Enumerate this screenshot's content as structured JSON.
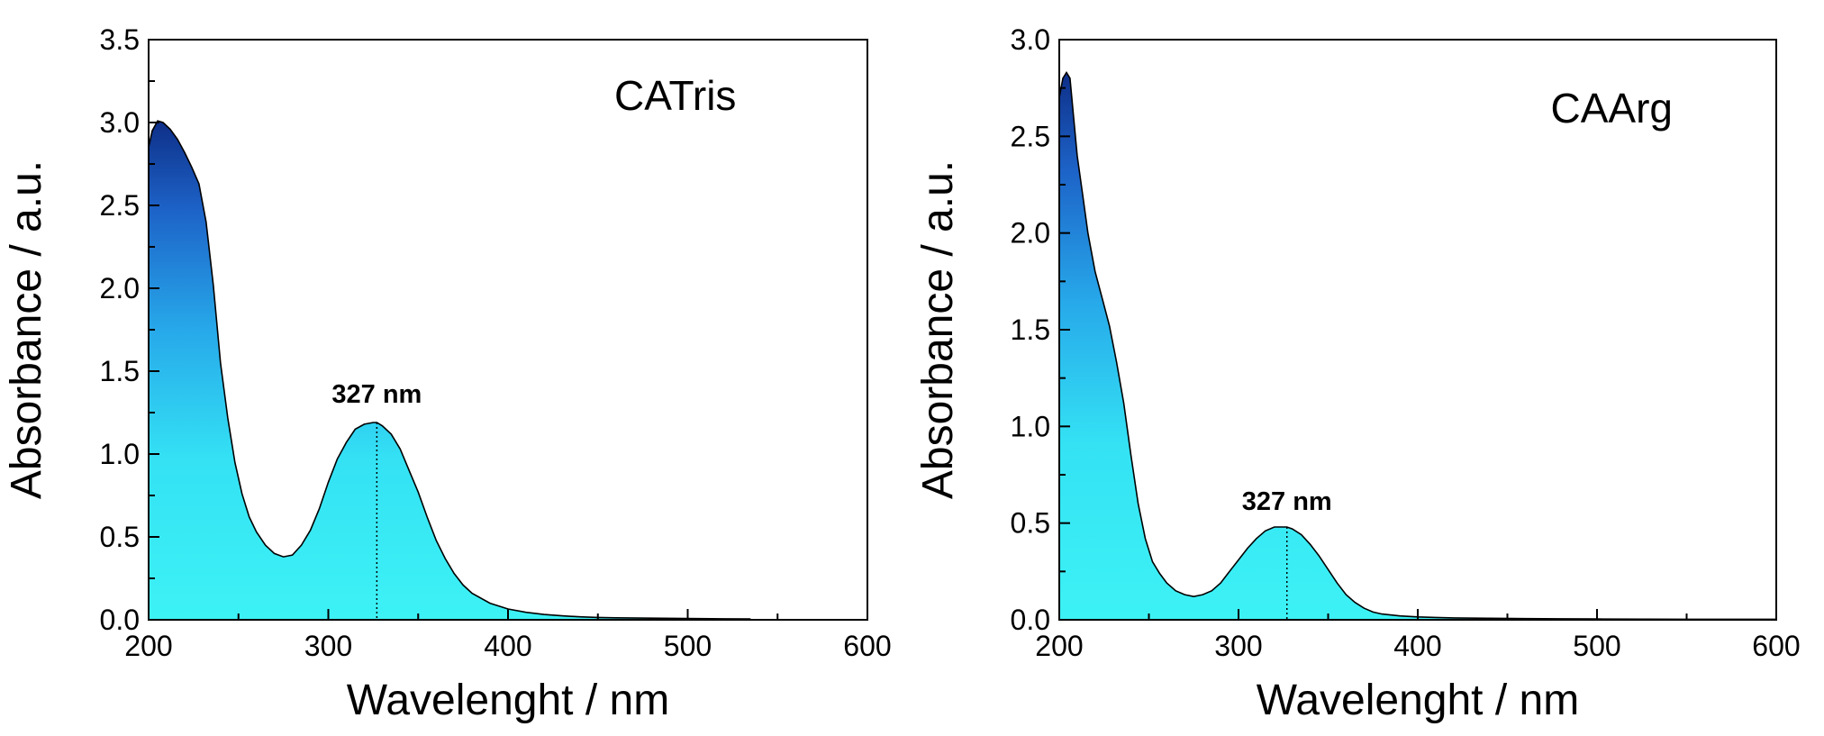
{
  "chart_data": [
    {
      "type": "area",
      "title": "CATris",
      "xlabel": "Wavelenght / nm",
      "ylabel": "Absorbance / a.u.",
      "xlim": [
        200,
        600
      ],
      "ylim": [
        0,
        3.5
      ],
      "xticks": [
        200,
        300,
        400,
        500,
        600
      ],
      "yticks": [
        0.0,
        0.5,
        1.0,
        1.5,
        2.0,
        2.5,
        3.0,
        3.5
      ],
      "xtick_labels": [
        "200",
        "300",
        "400",
        "500",
        "600"
      ],
      "ytick_labels": [
        "0.0",
        "0.5",
        "1.0",
        "1.5",
        "2.0",
        "2.5",
        "3.0",
        "3.5"
      ],
      "annotation": {
        "text": "327 nm",
        "x": 327,
        "y": 1.19
      },
      "series": [
        {
          "name": "CATris",
          "x": [
            200,
            202,
            205,
            208,
            212,
            216,
            220,
            224,
            228,
            232,
            236,
            240,
            244,
            248,
            252,
            256,
            260,
            265,
            270,
            275,
            280,
            285,
            290,
            295,
            300,
            305,
            310,
            315,
            320,
            325,
            327,
            330,
            335,
            340,
            345,
            350,
            355,
            360,
            365,
            370,
            375,
            380,
            390,
            400,
            410,
            420,
            430,
            440,
            450,
            460,
            480,
            500,
            520,
            535
          ],
          "y": [
            2.85,
            2.95,
            3.01,
            3.0,
            2.96,
            2.9,
            2.82,
            2.73,
            2.63,
            2.4,
            2.02,
            1.55,
            1.22,
            0.95,
            0.76,
            0.62,
            0.53,
            0.45,
            0.4,
            0.38,
            0.39,
            0.45,
            0.54,
            0.67,
            0.83,
            0.97,
            1.07,
            1.15,
            1.18,
            1.19,
            1.19,
            1.17,
            1.12,
            1.03,
            0.9,
            0.77,
            0.62,
            0.48,
            0.37,
            0.28,
            0.21,
            0.16,
            0.1,
            0.065,
            0.045,
            0.032,
            0.024,
            0.018,
            0.014,
            0.012,
            0.01,
            0.008,
            0.006,
            0.005
          ]
        }
      ]
    },
    {
      "type": "area",
      "title": "CAArg",
      "xlabel": "Wavelenght / nm",
      "ylabel": "Absorbance / a.u.",
      "xlim": [
        200,
        600
      ],
      "ylim": [
        0,
        3.0
      ],
      "xticks": [
        200,
        300,
        400,
        500,
        600
      ],
      "yticks": [
        0.0,
        0.5,
        1.0,
        1.5,
        2.0,
        2.5,
        3.0
      ],
      "xtick_labels": [
        "200",
        "300",
        "400",
        "500",
        "600"
      ],
      "ytick_labels": [
        "0.0",
        "0.5",
        "1.0",
        "1.5",
        "2.0",
        "2.5",
        "3.0"
      ],
      "annotation": {
        "text": "327 nm",
        "x": 327,
        "y": 0.48
      },
      "series": [
        {
          "name": "CAArg",
          "x": [
            200,
            202,
            204,
            206,
            208,
            210,
            213,
            216,
            220,
            224,
            228,
            232,
            236,
            240,
            244,
            248,
            252,
            256,
            260,
            265,
            270,
            275,
            280,
            285,
            290,
            295,
            300,
            305,
            310,
            315,
            320,
            325,
            327,
            330,
            335,
            340,
            345,
            350,
            355,
            360,
            365,
            370,
            375,
            380,
            390,
            400,
            410,
            420,
            440,
            460,
            480,
            500,
            550,
            600
          ],
          "y": [
            2.7,
            2.8,
            2.83,
            2.8,
            2.6,
            2.4,
            2.2,
            2.0,
            1.8,
            1.66,
            1.52,
            1.33,
            1.12,
            0.85,
            0.6,
            0.42,
            0.3,
            0.24,
            0.19,
            0.15,
            0.13,
            0.12,
            0.13,
            0.15,
            0.19,
            0.25,
            0.31,
            0.37,
            0.42,
            0.46,
            0.48,
            0.48,
            0.48,
            0.47,
            0.44,
            0.39,
            0.33,
            0.26,
            0.19,
            0.13,
            0.09,
            0.06,
            0.04,
            0.03,
            0.02,
            0.015,
            0.012,
            0.01,
            0.008,
            0.006,
            0.005,
            0.004,
            0.003,
            0.003
          ]
        }
      ]
    }
  ]
}
